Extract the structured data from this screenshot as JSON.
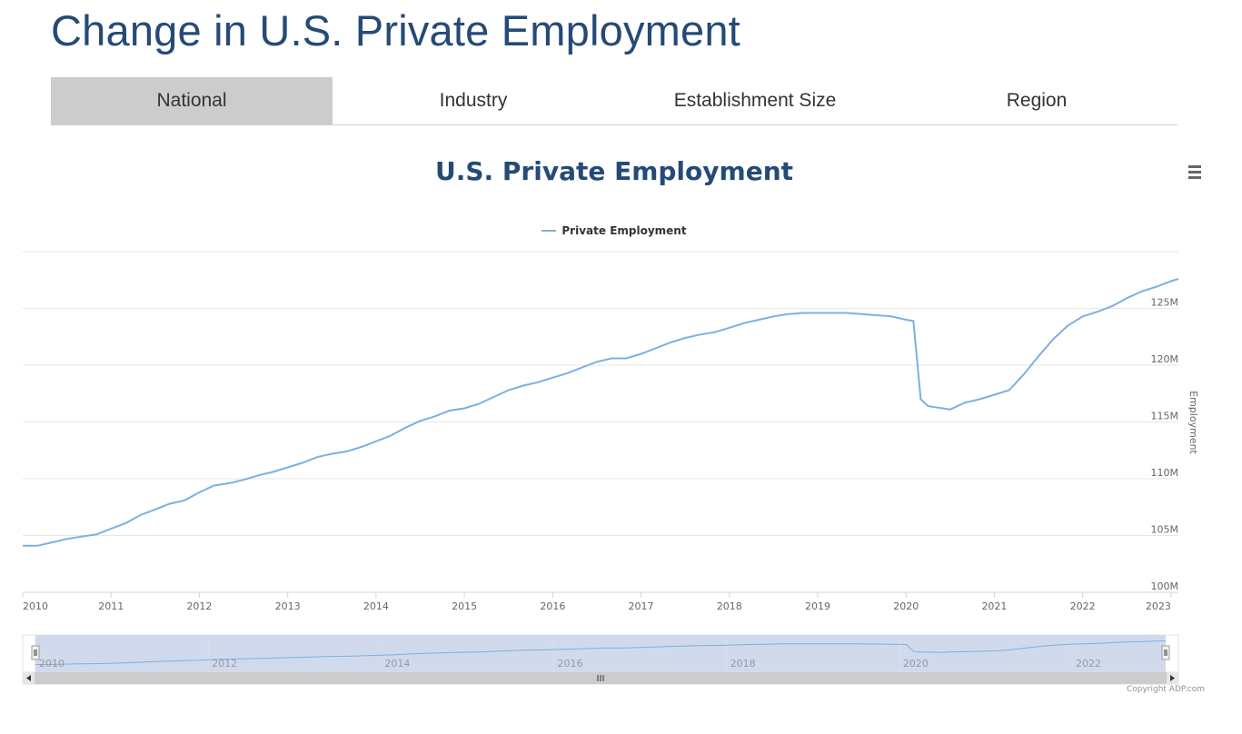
{
  "page": {
    "title": "Change in U.S. Private Employment"
  },
  "tabs": [
    {
      "label": "National",
      "active": true
    },
    {
      "label": "Industry",
      "active": false
    },
    {
      "label": "Establishment Size",
      "active": false
    },
    {
      "label": "Region",
      "active": false
    }
  ],
  "menu_icon": "hamburger-menu-icon",
  "copyright": "Copyright ADP.com",
  "colors": {
    "series": "#7cb0e0",
    "title": "#254a77",
    "active_tab": "#cccccc",
    "navigator_fill": "#ccd6eb"
  },
  "chart_data": {
    "type": "line",
    "title": "U.S. Private Employment",
    "ylabel": "Employment",
    "xlim": [
      "2010-01",
      "2023-02"
    ],
    "ylim": [
      100,
      130
    ],
    "y_ticks": [
      "100M",
      "105M",
      "110M",
      "115M",
      "120M",
      "125M"
    ],
    "x_ticks": [
      "2010",
      "2011",
      "2012",
      "2013",
      "2014",
      "2015",
      "2016",
      "2017",
      "2018",
      "2019",
      "2020",
      "2021",
      "2022",
      "2023"
    ],
    "navigator_ticks": [
      "2010",
      "2012",
      "2014",
      "2016",
      "2018",
      "2020",
      "2022"
    ],
    "y_axis_position": "right",
    "grid": true,
    "legend": "top-center",
    "series": [
      {
        "name": "Private Employment",
        "x": [
          "2010-01",
          "2010-03",
          "2010-05",
          "2010-07",
          "2010-09",
          "2010-11",
          "2011-01",
          "2011-03",
          "2011-05",
          "2011-07",
          "2011-09",
          "2011-11",
          "2012-01",
          "2012-03",
          "2012-05",
          "2012-07",
          "2012-09",
          "2012-11",
          "2013-01",
          "2013-03",
          "2013-05",
          "2013-07",
          "2013-09",
          "2013-11",
          "2014-01",
          "2014-03",
          "2014-05",
          "2014-07",
          "2014-09",
          "2014-11",
          "2015-01",
          "2015-03",
          "2015-05",
          "2015-07",
          "2015-09",
          "2015-11",
          "2016-01",
          "2016-03",
          "2016-05",
          "2016-07",
          "2016-09",
          "2016-11",
          "2017-01",
          "2017-03",
          "2017-05",
          "2017-07",
          "2017-09",
          "2017-11",
          "2018-01",
          "2018-03",
          "2018-05",
          "2018-07",
          "2018-09",
          "2018-11",
          "2019-01",
          "2019-03",
          "2019-05",
          "2019-07",
          "2019-09",
          "2019-11",
          "2020-01",
          "2020-02",
          "2020-03",
          "2020-04",
          "2020-05",
          "2020-06",
          "2020-07",
          "2020-08",
          "2020-09",
          "2020-11",
          "2021-01",
          "2021-03",
          "2021-05",
          "2021-07",
          "2021-09",
          "2021-11",
          "2022-01",
          "2022-03",
          "2022-05",
          "2022-07",
          "2022-09",
          "2022-11",
          "2023-01",
          "2023-02"
        ],
        "values": [
          104.1,
          104.1,
          104.4,
          104.7,
          104.9,
          105.1,
          105.6,
          106.1,
          106.8,
          107.3,
          107.8,
          108.1,
          108.8,
          109.4,
          109.6,
          109.9,
          110.3,
          110.6,
          111.0,
          111.4,
          111.9,
          112.2,
          112.4,
          112.8,
          113.3,
          113.8,
          114.5,
          115.1,
          115.5,
          116.0,
          116.2,
          116.6,
          117.2,
          117.8,
          118.2,
          118.5,
          118.9,
          119.3,
          119.8,
          120.3,
          120.6,
          120.6,
          121.0,
          121.5,
          122.0,
          122.4,
          122.7,
          122.9,
          123.3,
          123.7,
          124.0,
          124.3,
          124.5,
          124.6,
          124.6,
          124.6,
          124.6,
          124.5,
          124.4,
          124.3,
          124.0,
          123.9,
          117.0,
          116.4,
          116.3,
          116.2,
          116.1,
          116.4,
          116.7,
          117.0,
          117.4,
          117.8,
          119.2,
          120.8,
          122.3,
          123.5,
          124.3,
          124.7,
          125.2,
          125.9,
          126.5,
          126.9,
          127.4,
          127.6
        ]
      }
    ]
  }
}
